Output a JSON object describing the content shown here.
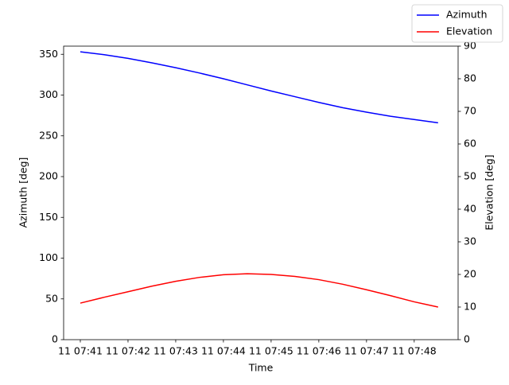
{
  "chart_data": {
    "type": "line",
    "x_label": "Time",
    "y_label": "Azimuth [deg]",
    "y2_label": "Elevation [deg]",
    "x": [
      41,
      41.5,
      42,
      42.5,
      43,
      43.5,
      44,
      44.5,
      45,
      45.5,
      46,
      46.5,
      47,
      47.5,
      48,
      48.5
    ],
    "xlim": [
      40.65,
      48.92
    ],
    "xticks": [
      {
        "value": 41,
        "label": "11 07:41"
      },
      {
        "value": 42,
        "label": "11 07:42"
      },
      {
        "value": 43,
        "label": "11 07:43"
      },
      {
        "value": 44,
        "label": "11 07:44"
      },
      {
        "value": 45,
        "label": "11 07:45"
      },
      {
        "value": 46,
        "label": "11 07:46"
      },
      {
        "value": 47,
        "label": "11 07:47"
      },
      {
        "value": 48,
        "label": "11 07:48"
      }
    ],
    "ylim": [
      0,
      360
    ],
    "yticks": [
      0,
      50,
      100,
      150,
      200,
      250,
      300,
      350
    ],
    "y2lim": [
      0,
      90
    ],
    "y2ticks": [
      0,
      10,
      20,
      30,
      40,
      50,
      60,
      70,
      80,
      90
    ],
    "grid": false,
    "legend": "upper right",
    "series": [
      {
        "name": "Azimuth",
        "color": "#0000ff",
        "values": [
          353,
          349.5,
          345,
          339.5,
          333.5,
          327,
          320,
          312.5,
          305,
          298,
          291,
          284.5,
          279,
          274,
          270,
          266
        ]
      },
      {
        "name": "Elevation",
        "color": "#ff0000",
        "axis": "y2",
        "values": [
          11.2,
          13,
          14.7,
          16.4,
          17.9,
          19.1,
          19.9,
          20.2,
          20.0,
          19.4,
          18.4,
          17.0,
          15.3,
          13.5,
          11.6,
          10
        ]
      }
    ]
  }
}
